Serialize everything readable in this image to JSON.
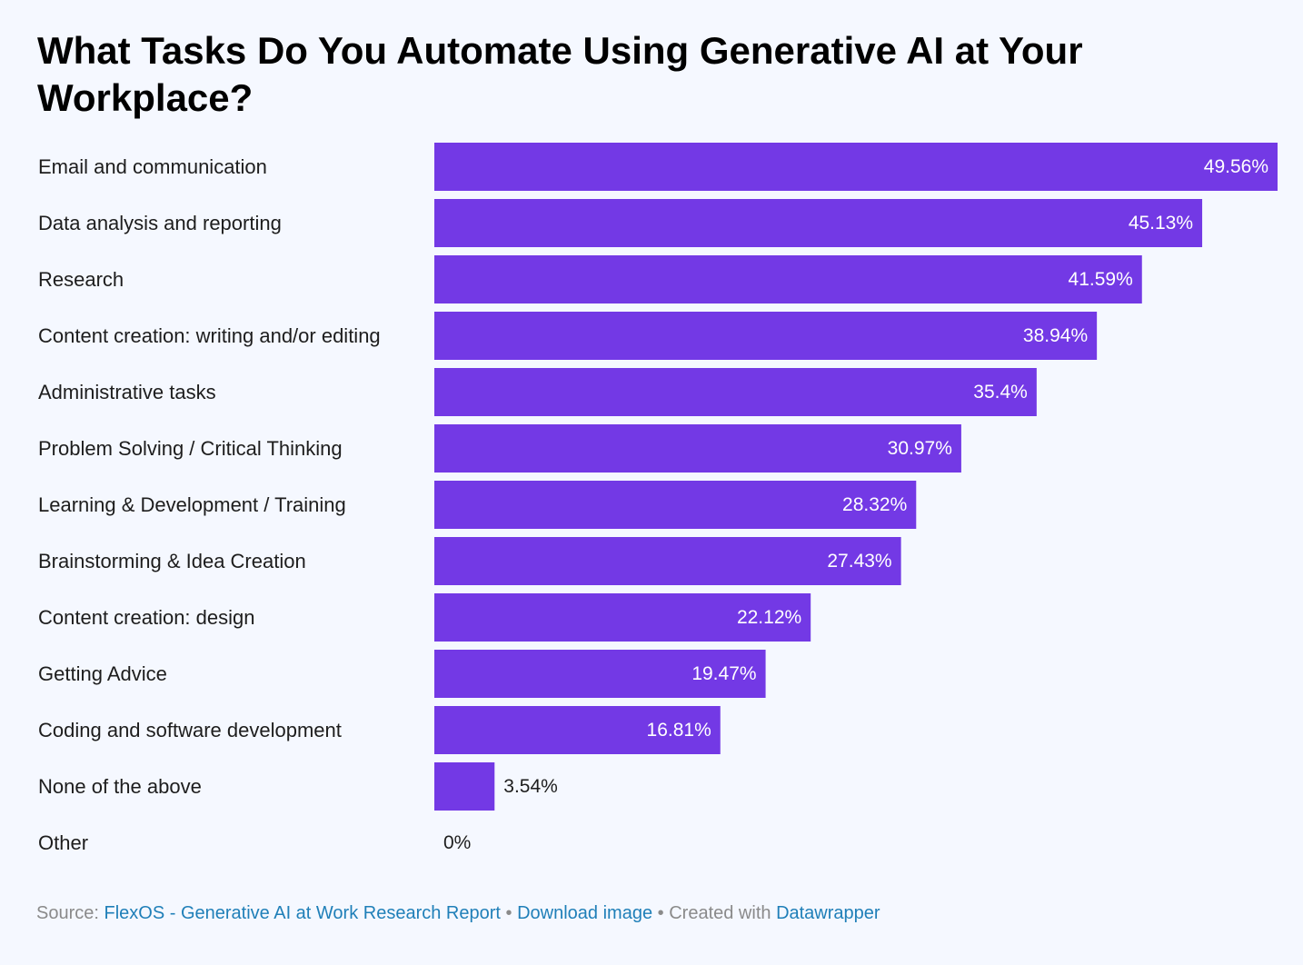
{
  "colors": {
    "bar": "#7339e5",
    "inside_label": "#ffffff",
    "outside_label": "#1d1d1d",
    "background": "#f5f8ff",
    "link": "#1f7fb8",
    "muted": "#8a8a8a"
  },
  "chart_data": {
    "type": "bar",
    "orientation": "horizontal",
    "title": "What Tasks Do You Automate Using Generative AI at Your Workplace?",
    "categories": [
      "Email and communication",
      "Data analysis and reporting",
      "Research",
      "Content creation: writing and/or editing",
      "Administrative tasks",
      "Problem Solving / Critical Thinking",
      "Learning & Development / Training",
      "Brainstorming & Idea Creation",
      "Content creation: design",
      "Getting Advice",
      "Coding and software development",
      "None of the above",
      "Other"
    ],
    "values": [
      49.56,
      45.13,
      41.59,
      38.94,
      35.4,
      30.97,
      28.32,
      27.43,
      22.12,
      19.47,
      16.81,
      3.54,
      0
    ],
    "value_labels": [
      "49.56%",
      "45.13%",
      "41.59%",
      "38.94%",
      "35.4%",
      "30.97%",
      "28.32%",
      "27.43%",
      "22.12%",
      "19.47%",
      "16.81%",
      "3.54%",
      "0%"
    ],
    "xlim": [
      0,
      49.56
    ],
    "grid": false,
    "legend": "none"
  },
  "footer": {
    "source_prefix": "Source: ",
    "source_link": "FlexOS - Generative AI at Work Research Report",
    "separator": "•",
    "download_link": "Download image",
    "created_with": "Created with ",
    "datawrapper_link": "Datawrapper"
  }
}
